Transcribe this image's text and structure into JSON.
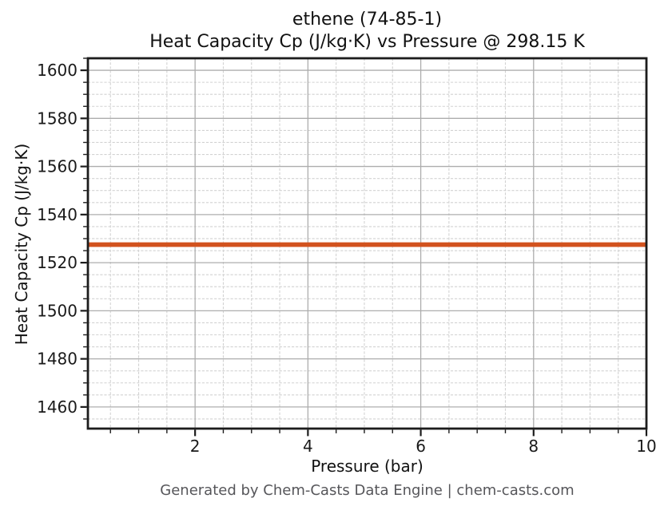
{
  "figure": {
    "footer": "Generated by Chem-Casts Data Engine | chem-casts.com"
  },
  "chart_data": {
    "type": "line",
    "title_line1": "ethene (74-85-1)",
    "title_line2": "Heat Capacity Cp (J/kg·K) vs Pressure @ 298.15 K",
    "xlabel": "Pressure (bar)",
    "ylabel": "Heat Capacity Cp (J/kg·K)",
    "xlim": [
      0.1,
      10
    ],
    "ylim": [
      1451,
      1605
    ],
    "x_major_ticks": [
      2,
      4,
      6,
      8,
      10
    ],
    "x_major_tick_labels": [
      "2",
      "4",
      "6",
      "8",
      "10"
    ],
    "x_minor_tick_step": 0.5,
    "y_major_ticks": [
      1460,
      1480,
      1500,
      1520,
      1540,
      1560,
      1580,
      1600
    ],
    "y_major_tick_labels": [
      "1460",
      "1480",
      "1500",
      "1520",
      "1540",
      "1560",
      "1580",
      "1600"
    ],
    "y_minor_tick_step": 5,
    "grid": {
      "major": true,
      "minor": true
    },
    "legend": false,
    "series": [
      {
        "name": "Heat Capacity Cp",
        "x": [
          0.1,
          10
        ],
        "y": [
          1527.5,
          1527.5
        ],
        "color": "#d2521e",
        "line_width": 5.8
      }
    ],
    "colors": {
      "major_grid": "#adadad",
      "minor_grid": "#d2d2d2",
      "spine": "#1c1c1c",
      "tick": "#1c1c1c",
      "tick_label": "#1a1a1a"
    }
  }
}
